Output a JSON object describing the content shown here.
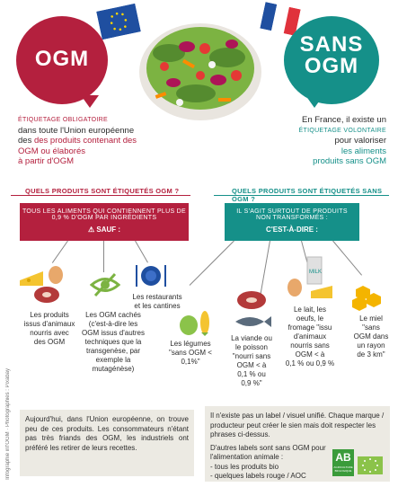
{
  "left": {
    "bubble": "OGM",
    "label_small": "ÉTIQUETAGE OBLIGATOIRE",
    "line1": "dans toute l'Union européenne",
    "line2": "des produits contenant des",
    "line3": "OGM ou élaborés",
    "line4": "à partir d'OGM"
  },
  "right": {
    "bubble1": "SANS",
    "bubble2": "OGM",
    "line1": "En France, il existe un",
    "label_small": "ÉTIQUETAGE VOLONTAIRE",
    "line2": "pour valoriser",
    "line3": "les aliments",
    "line4": "produits sans OGM"
  },
  "left_section": {
    "question": "QUELS PRODUITS SONT ÉTIQUETÉS OGM ?",
    "box_line1": "TOUS LES ALIMENTS QUI CONTIENNENT PLUS DE",
    "box_line2": "0,9 % D'OGM PAR INGRÉDIENTS",
    "sauf": "SAUF :",
    "items": [
      "Les produits\nissus d'animaux\nnourris avec\ndes OGM",
      "Les OGM cachés\n(c'est-à-dire les\nOGM issus d'autres\ntechniques que la\ntransgenèse, par\nexemple la\nmutagénèse)",
      "Les restaurants\net les cantines"
    ]
  },
  "right_section": {
    "question": "QUELS PRODUITS SONT ÉTIQUETÉS SANS OGM ?",
    "box_line1": "IL S'AGIT SURTOUT DE PRODUITS",
    "box_line2": "NON TRANSFORMÉS :",
    "cad": "C'EST-À-DIRE :",
    "items": [
      "Les légumes\n\"sans OGM <\n0,1%\"",
      "La viande ou\nle poisson\n\"nourri sans\nOGM < à\n0,1 % ou\n0,9 %\"",
      "Le lait, les\noeufs, le\nfromage \"issu\nd'animaux\nnourris sans\nOGM < à\n0,1 % ou 0,9 %",
      "Le miel\n\"sans\nOGM dans\nun rayon\nde 3 km\""
    ],
    "milk": "MILK"
  },
  "bottom_left": "Aujourd'hui, dans l'Union européenne, on trouve peu de ces produits. Les consommateurs n'étant pas très friands des OGM, les industriels ont préféré les retirer de leurs recettes.",
  "bottom_right": {
    "p1": "Il n'existe pas un label / visuel unifié. Chaque marque / producteur peut créer le sien mais doit respecter les phrases ci-dessus.",
    "p2": "D'autres labels sont sans OGM pour l'alimentation animale :",
    "b1": "- tous les produits bio",
    "b2": "- quelques labels rouge / AOC",
    "ab": "AB",
    "ab_sub": "AGRICULTURE BIOLOGIQUE"
  },
  "credit": "Infographie inf'OGM · Photographies : Pixabay",
  "colors": {
    "red": "#b4203e",
    "teal": "#159089"
  }
}
